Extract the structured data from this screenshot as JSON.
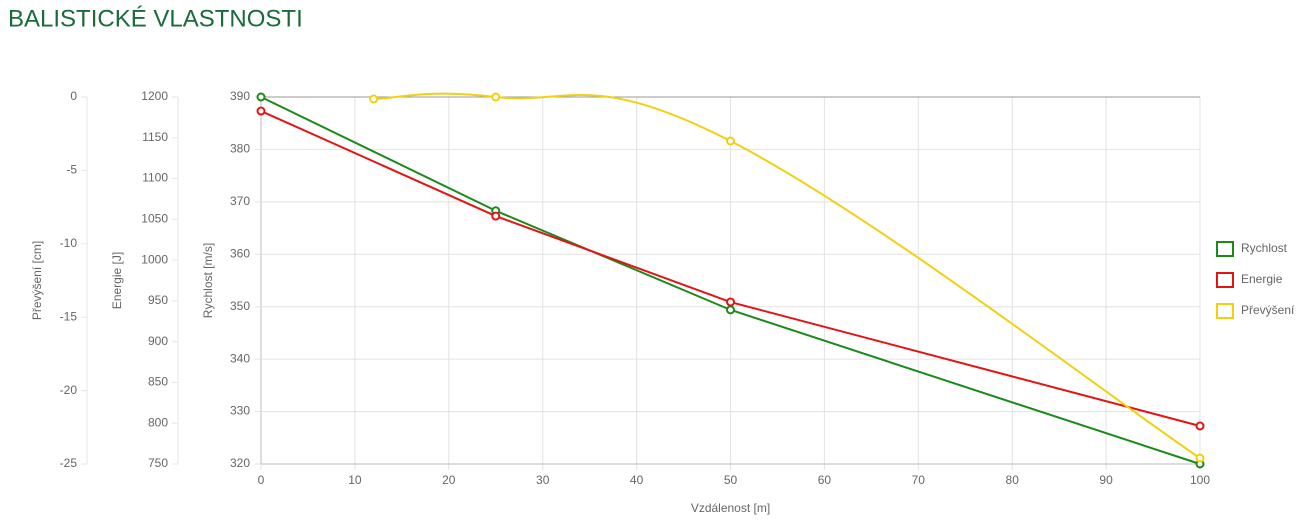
{
  "chart_data": {
    "type": "line",
    "title": "BALISTICKÉ VLASTNOSTI",
    "xlabel": "Vzdálenost [m]",
    "xlim": [
      0,
      100
    ],
    "xticks": [
      0,
      10,
      20,
      30,
      40,
      50,
      60,
      70,
      80,
      90,
      100
    ],
    "ylabel": "Rychlost [m/s]",
    "ylim": [
      320,
      390
    ],
    "yticks": [
      320,
      330,
      340,
      350,
      360,
      370,
      380,
      390
    ],
    "y2label": "Energie [J]",
    "y2lim": [
      750,
      1200
    ],
    "y2ticks": [
      750,
      800,
      850,
      900,
      950,
      1000,
      1050,
      1100,
      1150,
      1200
    ],
    "y3label": "Převýšení [cm]",
    "y3lim": [
      -25,
      0
    ],
    "y3ticks": [
      -25,
      -20,
      -15,
      -10,
      -5,
      0
    ],
    "grid": true,
    "legend": "right",
    "series": [
      {
        "name": "Rychlost",
        "color": "#1a8a1a",
        "axis": "y",
        "smooth": false,
        "x": [
          0,
          25,
          50,
          100
        ],
        "values": [
          390,
          368.3,
          349.4,
          320
        ]
      },
      {
        "name": "Energie",
        "color": "#e31414",
        "axis": "y2",
        "smooth": false,
        "x": [
          0,
          25,
          50,
          100
        ],
        "values": [
          1182.8,
          1054,
          948.6,
          796.6
        ]
      },
      {
        "name": "Převýšení",
        "color": "#f2d00f",
        "axis": "y3",
        "smooth": true,
        "x": [
          12,
          25,
          50,
          100
        ],
        "values": [
          -0.14,
          0,
          -3.0,
          -24.6
        ]
      }
    ]
  }
}
